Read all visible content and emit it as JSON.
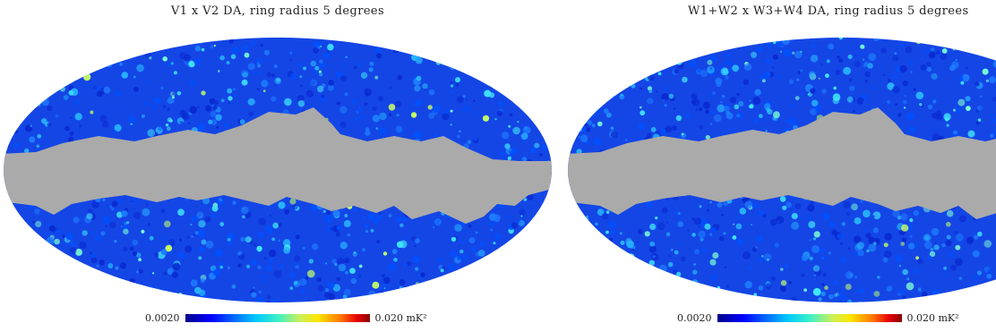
{
  "panels": [
    {
      "title": "V1 x V2 DA, ring radius 5 degrees",
      "colorbar": {
        "min_label": "0.0020",
        "max_label": "0.020 mK²"
      }
    },
    {
      "title": "W1+W2 x W3+W4 DA, ring radius 5 degrees",
      "colorbar": {
        "min_label": "0.0020",
        "max_label": "0.020 mK²"
      }
    }
  ],
  "colors": {
    "mask": "#aaaaaa",
    "map_low": "#0000ff",
    "map_high": "#ffff00",
    "background": "#ffffff"
  },
  "colormap": "jet"
}
